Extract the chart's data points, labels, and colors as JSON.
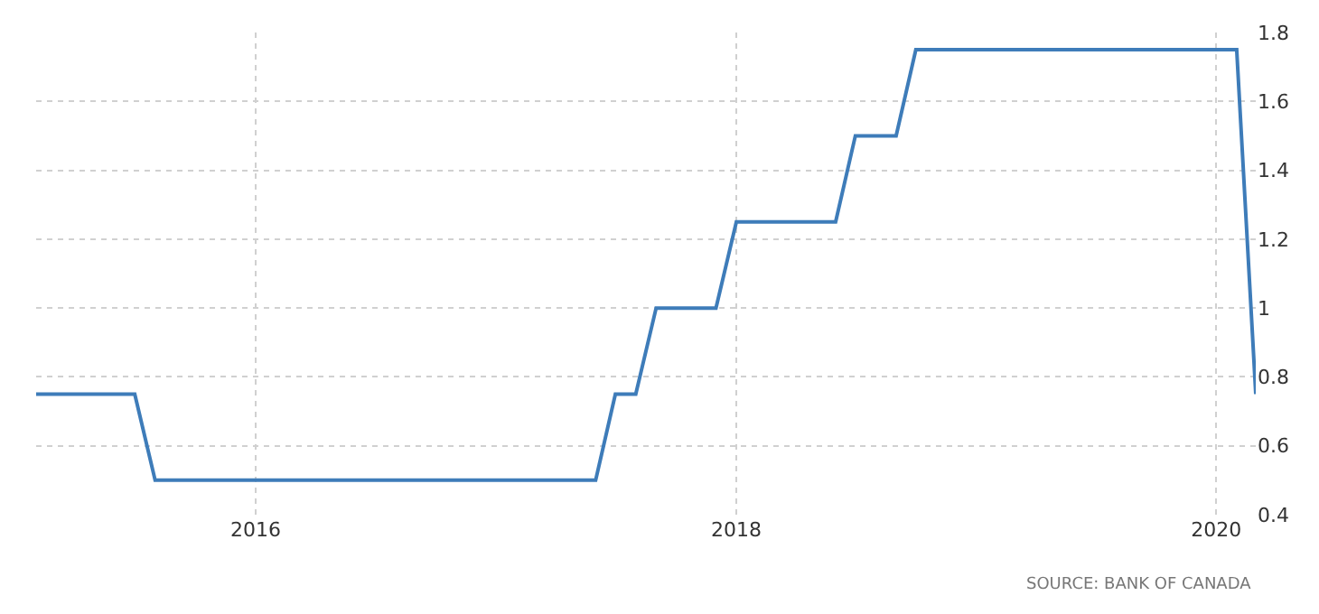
{
  "chart_data": {
    "type": "line",
    "x": [
      "2015-02",
      "2015-07",
      "2015-08",
      "2017-06",
      "2017-07",
      "2017-08",
      "2017-09",
      "2017-12",
      "2018-01",
      "2018-06",
      "2018-07",
      "2018-09",
      "2018-10",
      "2020-02",
      "2020-03"
    ],
    "series": [
      {
        "color": "#3e7cb9",
        "values": [
          0.75,
          0.75,
          0.5,
          0.5,
          0.75,
          0.75,
          1.0,
          1.0,
          1.25,
          1.25,
          1.5,
          1.5,
          1.75,
          1.75,
          0.75
        ]
      }
    ],
    "xlim": [
      "2015-02",
      "2020-03"
    ],
    "xticks": [
      {
        "value": "2016",
        "label": "2016"
      },
      {
        "value": "2018",
        "label": "2018"
      },
      {
        "value": "2020",
        "label": "2020"
      }
    ],
    "ylim": [
      0.4,
      1.8
    ],
    "yticks": [
      0.4,
      0.6,
      0.8,
      1,
      1.2,
      1.4,
      1.6,
      1.8
    ],
    "grid": true,
    "marker": "none",
    "line_style": "solid",
    "annotations": [
      "SOURCE: BANK OF CANADA"
    ]
  }
}
